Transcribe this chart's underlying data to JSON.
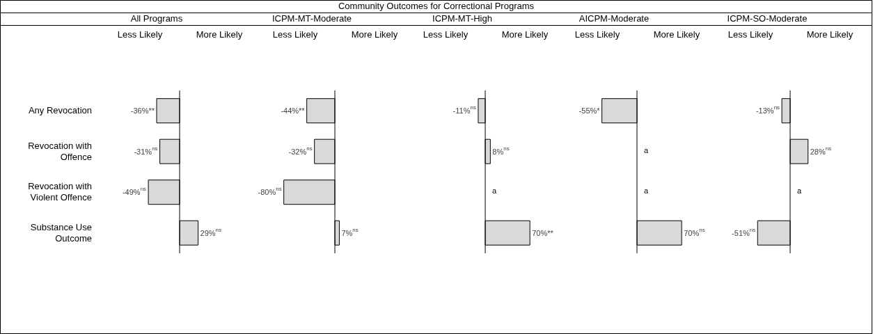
{
  "chart_data": [
    {
      "type": "bar",
      "orientation": "horizontal",
      "subtitle": "All Programs",
      "categories": [
        "Any Revocation",
        "Revocation with Offence",
        "Revocation with Violent Offence",
        "Substance Use Outcome"
      ],
      "values": [
        -36,
        -31,
        -49,
        29
      ],
      "color": "#d9d9d9",
      "value_labels": [
        "-36%**",
        "-31%$^{ns}$",
        "-49%$^{ns}$",
        "29%$^{ns}$"
      ],
      "tick_labels": "y",
      "annotations": [
        "Less Likely",
        "More Likely"
      ]
    },
    {
      "type": "bar",
      "orientation": "horizontal",
      "subtitle": "ICPM-MT-Moderate",
      "values": [
        -44,
        -32,
        -80,
        7
      ],
      "color": "#d9d9d9",
      "value_labels": [
        "-44%**",
        "-32%$^{ns}$",
        "-80%$^{ns}$",
        "7%$^{ns}$"
      ],
      "tick_labels": false,
      "annotations": [
        "Less Likely",
        "More Likely"
      ]
    },
    {
      "type": "bar",
      "orientation": "horizontal",
      "title": "Community Outcomes for Correctional Programs",
      "subtitle": "ICPM-MT-High",
      "values": [
        -11,
        8,
        null,
        70
      ],
      "color": "#d9d9d9",
      "value_labels": [
        "-11%$^{ns}$",
        "8%$^{ns}$",
        null,
        "70%**"
      ],
      "tick_labels": false,
      "annotations": [
        "Less Likely",
        "More Likely",
        "a"
      ]
    },
    {
      "type": "bar",
      "orientation": "horizontal",
      "subtitle": "AICPM-Moderate",
      "values": [
        -55,
        null,
        null,
        70
      ],
      "color": "#d9d9d9",
      "value_labels": [
        "-55%*",
        null,
        null,
        "70%$^{ns}$"
      ],
      "tick_labels": false,
      "annotations": [
        "Less Likely",
        "More Likely",
        "a",
        "a"
      ]
    },
    {
      "type": "bar",
      "orientation": "horizontal",
      "subtitle": "ICPM-SO-Moderate",
      "values": [
        -13,
        28,
        null,
        -51
      ],
      "color": "#d9d9d9",
      "value_labels": [
        "-13%$^{ns}$",
        "28%$^{ns}$",
        null,
        "-51%$^{ns}$"
      ],
      "tick_labels": false,
      "annotations": [
        "Less Likely",
        "More Likely",
        "a"
      ]
    }
  ]
}
